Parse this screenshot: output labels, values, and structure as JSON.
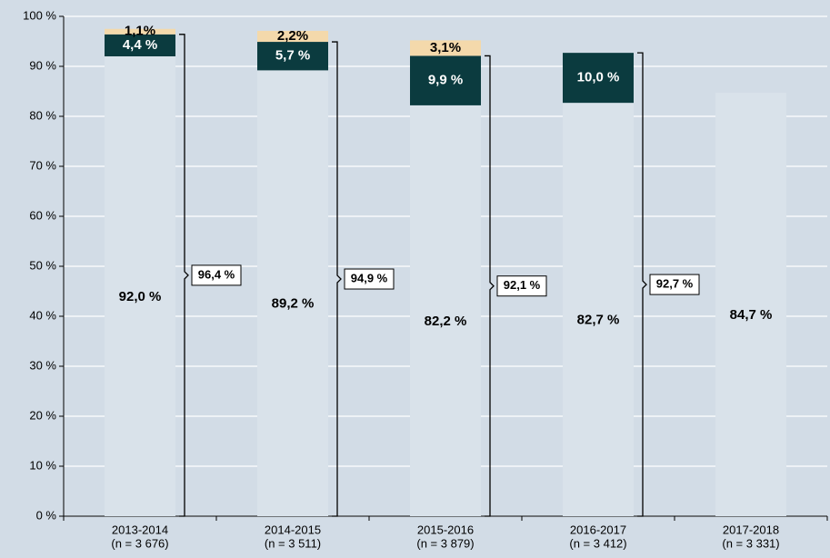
{
  "chart_data": {
    "type": "stacked_bar",
    "categories": [
      "2013-2014",
      "2014-2015",
      "2015-2016",
      "2016-2017",
      "2017-2018"
    ],
    "category_sublabels": [
      "(n = 3 676)",
      "(n = 3 511)",
      "(n = 3 879)",
      "(n = 3 412)",
      "(n = 3 331)"
    ],
    "series": [
      {
        "color": "#d9e2ea",
        "label_color": "#000000",
        "values": [
          92.0,
          89.2,
          82.2,
          82.7,
          84.7
        ],
        "value_labels": [
          "92,0 %",
          "89,2 %",
          "82,2 %",
          "82,7 %",
          "84,7 %"
        ]
      },
      {
        "color": "#0b3b3f",
        "label_color": "#ffffff",
        "values": [
          4.4,
          5.7,
          9.9,
          10.0,
          null
        ],
        "value_labels": [
          "4,4 %",
          "5,7 %",
          "9,9 %",
          "10,0 %",
          null
        ]
      },
      {
        "color": "#f4d9ab",
        "label_color": "#000000",
        "values": [
          1.1,
          2.2,
          3.1,
          null,
          null
        ],
        "value_labels": [
          "1,1%",
          "2,2%",
          "3,1%",
          null,
          null
        ]
      }
    ],
    "totals": {
      "values": [
        96.4,
        94.9,
        92.1,
        92.7
      ],
      "value_labels": [
        "96,4 %",
        "94,9 %",
        "92,1 %",
        "92,7 %"
      ]
    },
    "ylim": [
      0,
      100
    ],
    "yticks": [
      {
        "value": 0,
        "label": "0 %"
      },
      {
        "value": 10,
        "label": "10 %"
      },
      {
        "value": 20,
        "label": "20 %"
      },
      {
        "value": 30,
        "label": "30 %"
      },
      {
        "value": 40,
        "label": "40 %"
      },
      {
        "value": 50,
        "label": "50 %"
      },
      {
        "value": 60,
        "label": "60 %"
      },
      {
        "value": 70,
        "label": "70 %"
      },
      {
        "value": 80,
        "label": "80 %"
      },
      {
        "value": 90,
        "label": "90 %"
      },
      {
        "value": 100,
        "label": "100 %"
      }
    ],
    "grid": true
  }
}
